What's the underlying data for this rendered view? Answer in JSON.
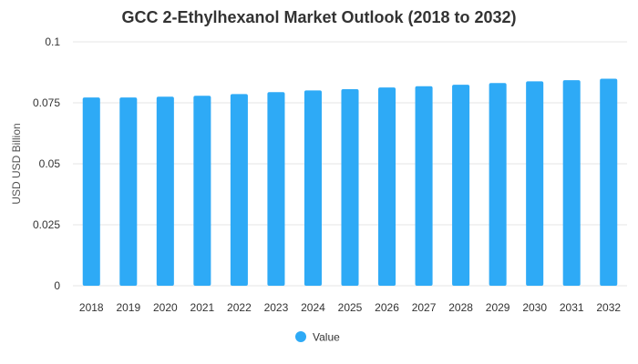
{
  "chart_data": {
    "type": "bar",
    "title": "GCC 2-Ethylhexanol Market Outlook (2018 to 2032)",
    "xlabel": "",
    "ylabel": "USD USD Billion",
    "categories": [
      "2018",
      "2019",
      "2020",
      "2021",
      "2022",
      "2023",
      "2024",
      "2025",
      "2026",
      "2027",
      "2028",
      "2029",
      "2030",
      "2031",
      "2032"
    ],
    "series": [
      {
        "name": "Value",
        "values": [
          0.0772,
          0.0772,
          0.0775,
          0.0779,
          0.0786,
          0.0794,
          0.0801,
          0.0806,
          0.0813,
          0.0818,
          0.0824,
          0.0831,
          0.0838,
          0.0843,
          0.0849
        ],
        "color": "#2eaaf6"
      }
    ],
    "ylim": [
      0,
      0.1
    ],
    "yticks": [
      "0",
      "0.025",
      "0.05",
      "0.075",
      "0.1"
    ],
    "grid": true,
    "legend_position": "bottom-center"
  }
}
